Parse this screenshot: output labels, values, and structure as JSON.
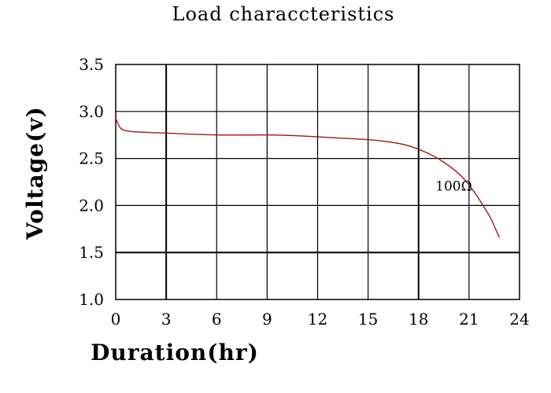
{
  "chart_data": {
    "type": "line",
    "title": "Load characcteristics",
    "xlabel": "Duration(hr)",
    "ylabel": "Voltage(v)",
    "xlim": [
      0,
      24
    ],
    "ylim": [
      1.0,
      3.5
    ],
    "xticks": [
      "0",
      "3",
      "6",
      "9",
      "12",
      "15",
      "18",
      "21",
      "24"
    ],
    "yticks": [
      "3.5",
      "3.0",
      "2.5",
      "2.0",
      "1.5",
      "1.0"
    ],
    "grid": true,
    "line_color": "#a01818",
    "series": [
      {
        "x": [
          0,
          0.3,
          0.8,
          1.5,
          3,
          6,
          9,
          11,
          13,
          15,
          16.5,
          17.5,
          18.5,
          19.5,
          20.5,
          21.2,
          21.8,
          22.3,
          22.6,
          22.8
        ],
        "y": [
          2.93,
          2.82,
          2.79,
          2.78,
          2.77,
          2.75,
          2.75,
          2.74,
          2.72,
          2.7,
          2.67,
          2.63,
          2.56,
          2.46,
          2.32,
          2.17,
          2.01,
          1.86,
          1.74,
          1.66
        ]
      }
    ],
    "annotations": [
      {
        "text": "100Ω",
        "x": 19.0,
        "y": 2.16
      }
    ]
  }
}
